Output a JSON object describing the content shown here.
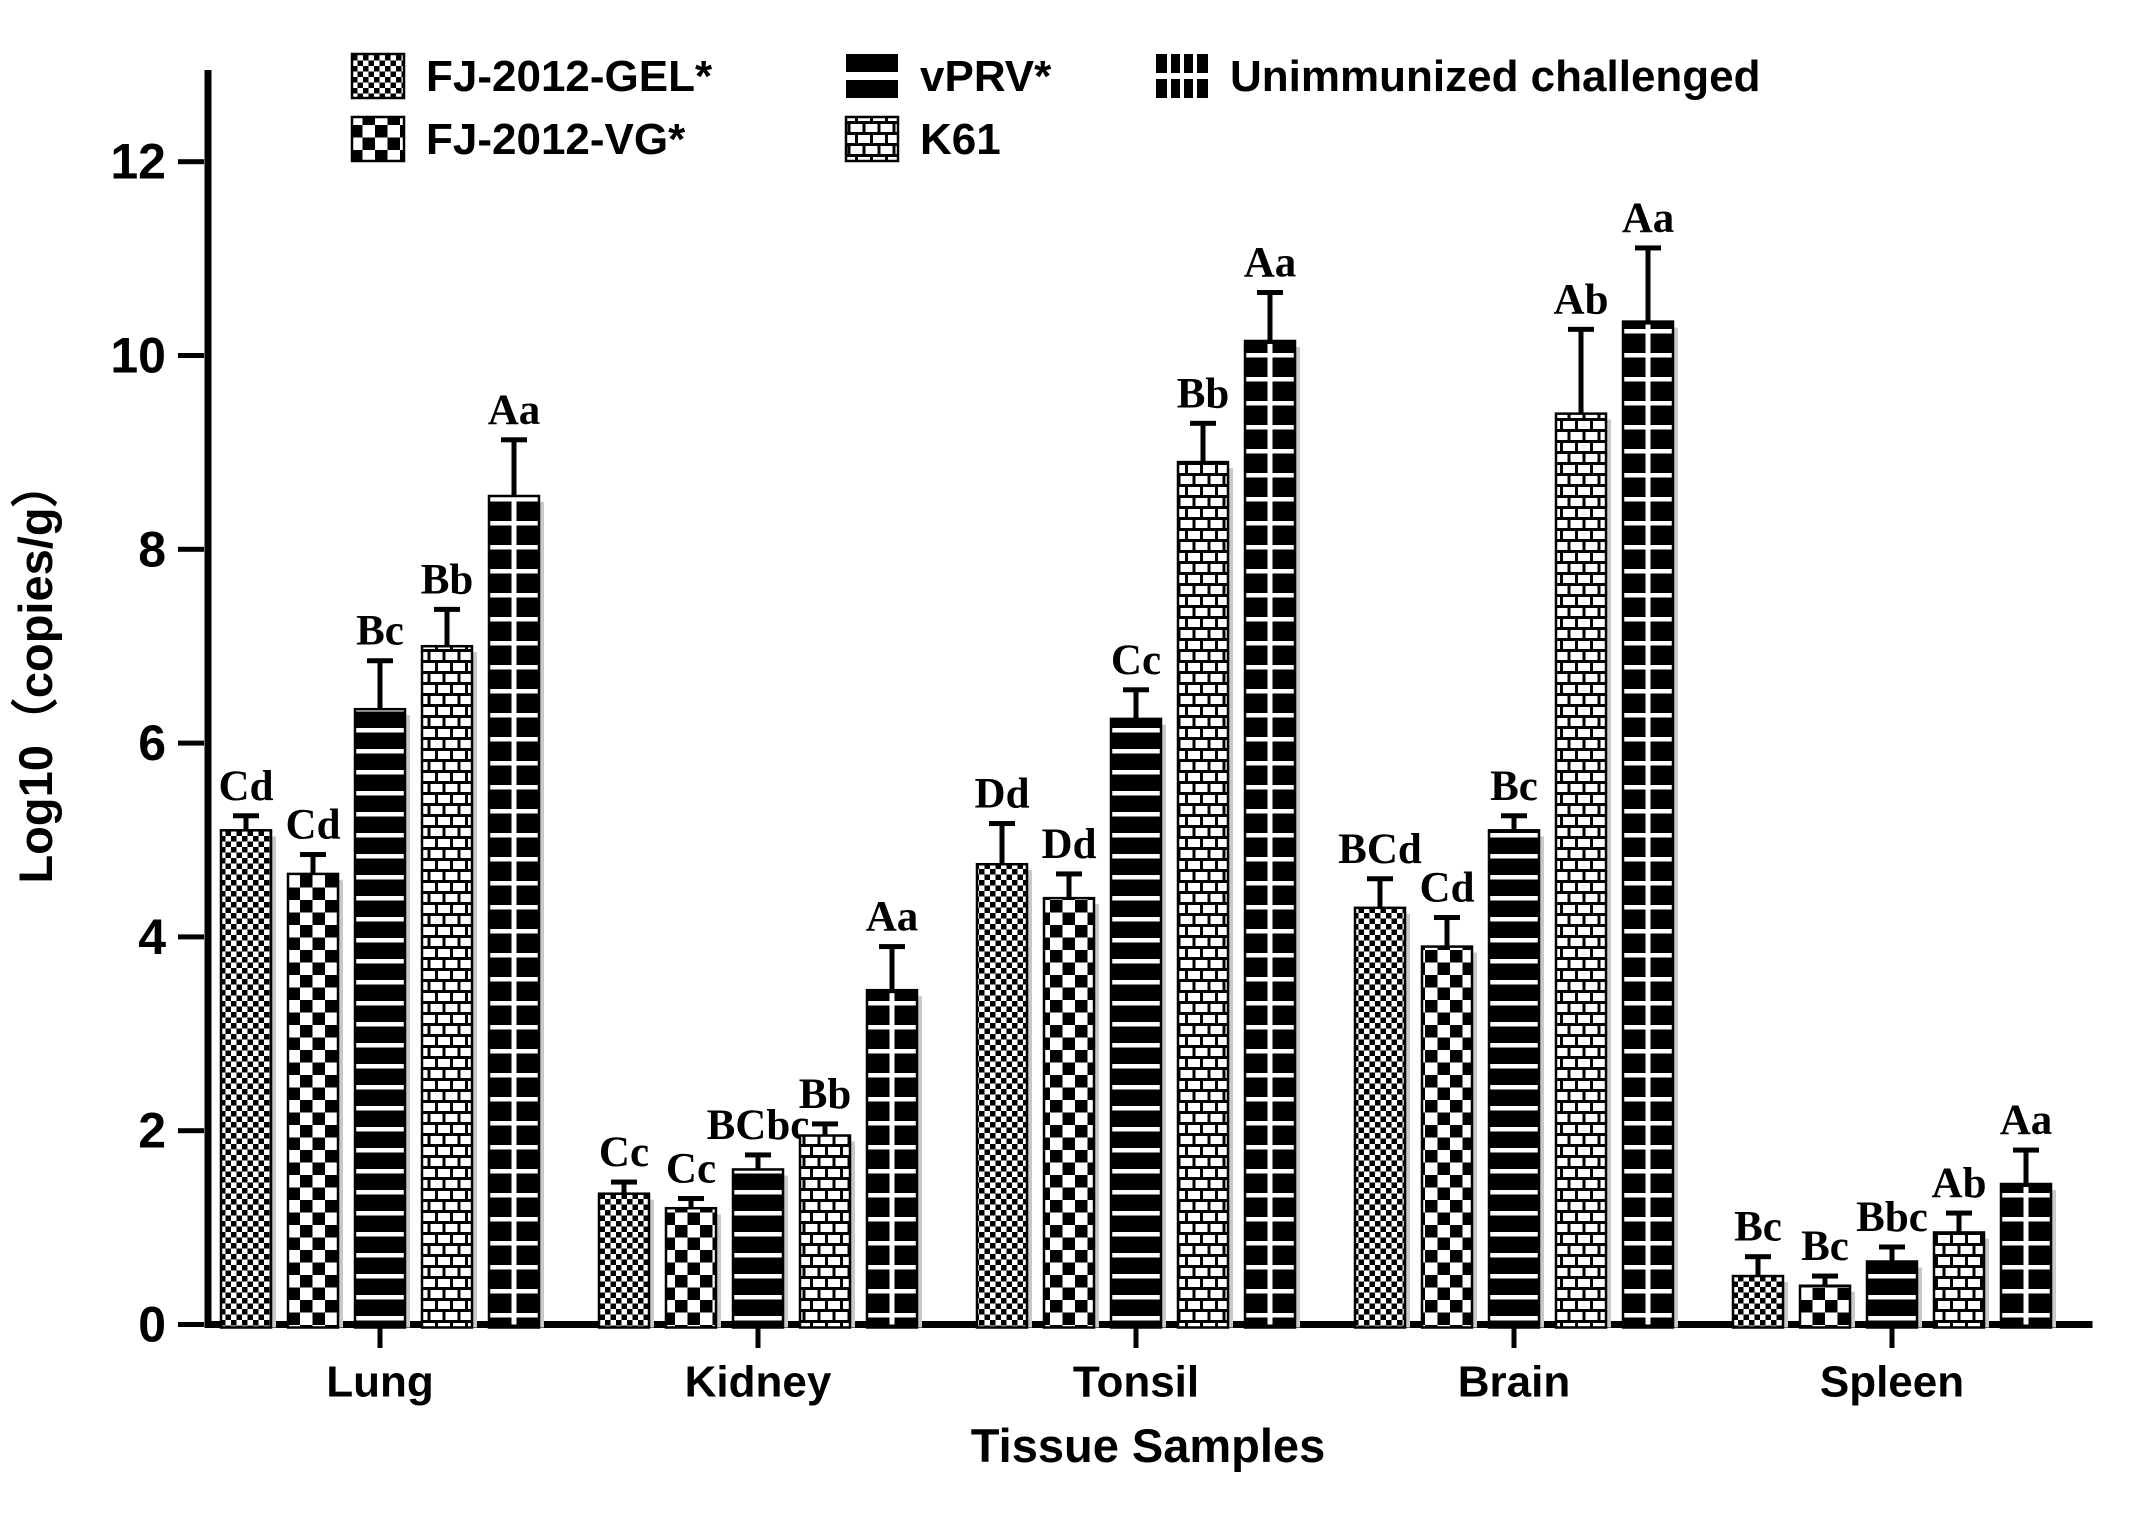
{
  "figure": {
    "background": "#ffffff",
    "foreground": "#000000",
    "shadow_color": "#c9c9c9"
  },
  "chart_data": {
    "type": "bar",
    "title": "",
    "xlabel": "Tissue Samples",
    "ylabel": "Log10（copies/g）",
    "ylim": [
      0,
      12.9
    ],
    "yticks": [
      0,
      2,
      4,
      6,
      8,
      10,
      12
    ],
    "ytick_labels": [
      "0",
      "2",
      "4",
      "6",
      "8",
      "10",
      "12"
    ],
    "grid": false,
    "legend_position": "top-inside",
    "categories": [
      "Lung",
      "Kidney",
      "Tonsil",
      "Brain",
      "Spleen"
    ],
    "series": [
      {
        "name": "FJ-2012-GEL*",
        "pattern": "fine-checker",
        "values": [
          5.1,
          1.35,
          4.75,
          4.3,
          0.5
        ],
        "errors": [
          0.15,
          0.12,
          0.42,
          0.3,
          0.2
        ],
        "sig_labels": [
          "Cd",
          "Cc",
          "Dd",
          "BCd",
          "Bc"
        ]
      },
      {
        "name": "FJ-2012-VG*",
        "pattern": "coarse-checker",
        "values": [
          4.65,
          1.2,
          4.4,
          3.9,
          0.4
        ],
        "errors": [
          0.2,
          0.1,
          0.25,
          0.3,
          0.1
        ],
        "sig_labels": [
          "Cd",
          "Cc",
          "Dd",
          "Cd",
          "Bc"
        ]
      },
      {
        "name": "vPRV*",
        "pattern": "horizontal-stripes",
        "values": [
          6.35,
          1.6,
          6.25,
          5.1,
          0.65
        ],
        "errors": [
          0.5,
          0.15,
          0.3,
          0.15,
          0.15
        ],
        "sig_labels": [
          "Bc",
          "BCbc",
          "Cc",
          "Bc",
          "Bbc"
        ]
      },
      {
        "name": "K61",
        "pattern": "brick",
        "values": [
          7.0,
          1.95,
          8.9,
          9.4,
          0.95
        ],
        "errors": [
          0.38,
          0.12,
          0.4,
          0.87,
          0.2
        ],
        "sig_labels": [
          "Bb",
          "Bb",
          "Bb",
          "Ab",
          "Ab"
        ]
      },
      {
        "name": "Unimmunized challenged",
        "pattern": "grid-on-black",
        "values": [
          8.55,
          3.45,
          10.15,
          10.35,
          1.45
        ],
        "errors": [
          0.58,
          0.45,
          0.5,
          0.76,
          0.35
        ],
        "sig_labels": [
          "Aa",
          "Aa",
          "Aa",
          "Aa",
          "Aa"
        ]
      }
    ],
    "legend": {
      "rows": [
        [
          "FJ-2012-GEL*",
          "vPRV*",
          "Unimmunized challenged"
        ],
        [
          "FJ-2012-VG*",
          "K61"
        ]
      ]
    }
  }
}
